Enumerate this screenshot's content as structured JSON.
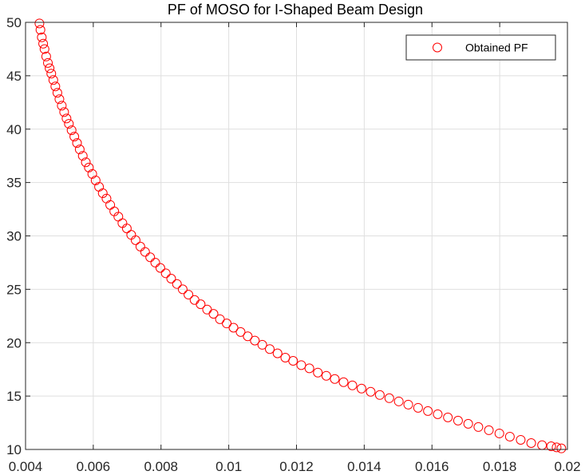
{
  "chart_data": {
    "type": "scatter",
    "title": "PF of MOSO for I-Shaped Beam Design",
    "xlabel": "",
    "ylabel": "",
    "xlim": [
      0.004,
      0.02
    ],
    "ylim": [
      10,
      50
    ],
    "xticks": [
      "0.004",
      "0.006",
      "0.008",
      "0.01",
      "0.012",
      "0.014",
      "0.016",
      "0.018",
      "0.02"
    ],
    "yticks": [
      "10",
      "15",
      "20",
      "25",
      "30",
      "35",
      "40",
      "45",
      "50"
    ],
    "xtick_values": [
      0.004,
      0.006,
      0.008,
      0.01,
      0.012,
      0.014,
      0.016,
      0.018,
      0.02
    ],
    "ytick_values": [
      10,
      15,
      20,
      25,
      30,
      35,
      40,
      45,
      50
    ],
    "grid": true,
    "legend_position": "top-right",
    "marker": "open-circle",
    "colors": {
      "series": "#ff0000",
      "axis": "#262626",
      "grid": "#dfdfdf"
    },
    "series": [
      {
        "name": "Obtained PF",
        "points": [
          [
            0.00441,
            49.9
          ],
          [
            0.00444,
            49.3
          ],
          [
            0.00448,
            48.6
          ],
          [
            0.00452,
            48.0
          ],
          [
            0.00456,
            47.5
          ],
          [
            0.00461,
            46.8
          ],
          [
            0.00466,
            46.2
          ],
          [
            0.00471,
            45.7
          ],
          [
            0.00476,
            45.2
          ],
          [
            0.00482,
            44.6
          ],
          [
            0.00488,
            44.0
          ],
          [
            0.00494,
            43.4
          ],
          [
            0.005,
            42.8
          ],
          [
            0.00507,
            42.2
          ],
          [
            0.00514,
            41.6
          ],
          [
            0.00521,
            41.0
          ],
          [
            0.00528,
            40.5
          ],
          [
            0.00536,
            39.9
          ],
          [
            0.00544,
            39.3
          ],
          [
            0.00552,
            38.7
          ],
          [
            0.0056,
            38.1
          ],
          [
            0.00569,
            37.5
          ],
          [
            0.00578,
            36.9
          ],
          [
            0.00587,
            36.4
          ],
          [
            0.00597,
            35.8
          ],
          [
            0.00607,
            35.2
          ],
          [
            0.00617,
            34.6
          ],
          [
            0.00628,
            34.0
          ],
          [
            0.00639,
            33.5
          ],
          [
            0.0065,
            32.9
          ],
          [
            0.00662,
            32.3
          ],
          [
            0.00674,
            31.8
          ],
          [
            0.00686,
            31.2
          ],
          [
            0.00699,
            30.7
          ],
          [
            0.00712,
            30.1
          ],
          [
            0.00725,
            29.6
          ],
          [
            0.00739,
            29.0
          ],
          [
            0.00753,
            28.5
          ],
          [
            0.00768,
            28.0
          ],
          [
            0.00783,
            27.5
          ],
          [
            0.00798,
            27.0
          ],
          [
            0.00814,
            26.5
          ],
          [
            0.0083,
            26.0
          ],
          [
            0.00847,
            25.5
          ],
          [
            0.00864,
            25.0
          ],
          [
            0.00881,
            24.5
          ],
          [
            0.00899,
            24.0
          ],
          [
            0.00917,
            23.6
          ],
          [
            0.00936,
            23.1
          ],
          [
            0.00955,
            22.7
          ],
          [
            0.00974,
            22.2
          ],
          [
            0.00994,
            21.8
          ],
          [
            0.01014,
            21.4
          ],
          [
            0.01035,
            21.0
          ],
          [
            0.01056,
            20.6
          ],
          [
            0.01077,
            20.2
          ],
          [
            0.01099,
            19.8
          ],
          [
            0.01121,
            19.4
          ],
          [
            0.01144,
            19.0
          ],
          [
            0.01167,
            18.6
          ],
          [
            0.0119,
            18.3
          ],
          [
            0.01214,
            17.9
          ],
          [
            0.01238,
            17.6
          ],
          [
            0.01263,
            17.2
          ],
          [
            0.01288,
            16.9
          ],
          [
            0.01313,
            16.6
          ],
          [
            0.01339,
            16.3
          ],
          [
            0.01365,
            16.0
          ],
          [
            0.01392,
            15.7
          ],
          [
            0.01419,
            15.4
          ],
          [
            0.01446,
            15.1
          ],
          [
            0.01474,
            14.8
          ],
          [
            0.01502,
            14.5
          ],
          [
            0.0153,
            14.2
          ],
          [
            0.01559,
            13.9
          ],
          [
            0.01588,
            13.6
          ],
          [
            0.01617,
            13.3
          ],
          [
            0.01647,
            13.0
          ],
          [
            0.01677,
            12.7
          ],
          [
            0.01707,
            12.4
          ],
          [
            0.01737,
            12.1
          ],
          [
            0.01768,
            11.8
          ],
          [
            0.01799,
            11.5
          ],
          [
            0.0183,
            11.2
          ],
          [
            0.01862,
            10.9
          ],
          [
            0.01893,
            10.6
          ],
          [
            0.01925,
            10.4
          ],
          [
            0.01952,
            10.3
          ],
          [
            0.01968,
            10.2
          ],
          [
            0.01982,
            10.1
          ]
        ]
      }
    ]
  }
}
